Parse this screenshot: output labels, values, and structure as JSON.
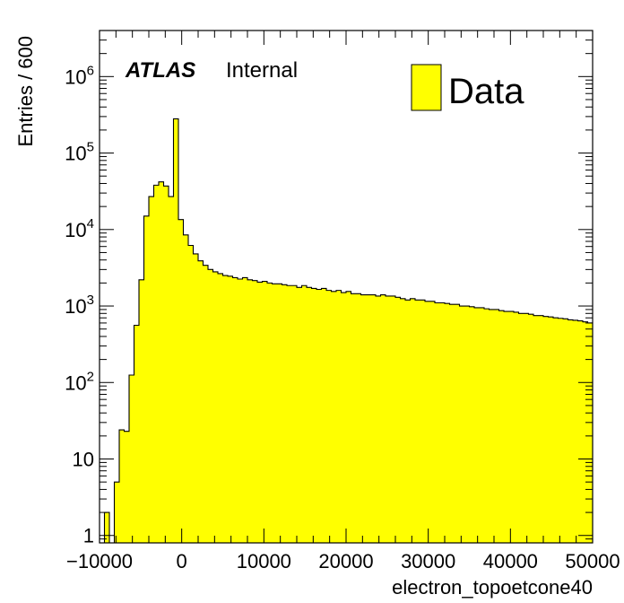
{
  "chart_data": {
    "type": "bar",
    "subtype": "histogram",
    "xlabel": "electron_topoetcone40",
    "ylabel": "Entries / 600",
    "x_range": [
      -10000,
      50000
    ],
    "bin_width": 600,
    "y_scale": "log",
    "ylim": [
      0.8,
      4000000
    ],
    "x_ticks": [
      -10000,
      0,
      10000,
      20000,
      30000,
      40000,
      50000
    ],
    "x_tick_labels": [
      "−10000",
      "0",
      "10000",
      "20000",
      "30000",
      "40000",
      "50000"
    ],
    "y_tick_labels": [
      {
        "value": 1,
        "base": "1",
        "exp": ""
      },
      {
        "value": 10,
        "base": "10",
        "exp": ""
      },
      {
        "value": 100,
        "base": "10",
        "exp": "2"
      },
      {
        "value": 1000,
        "base": "10",
        "exp": "3"
      },
      {
        "value": 10000,
        "base": "10",
        "exp": "4"
      },
      {
        "value": 100000,
        "base": "10",
        "exp": "5"
      },
      {
        "value": 1000000,
        "base": "10",
        "exp": "6"
      }
    ],
    "annotation": {
      "atlas": "ATLAS",
      "internal": "Internal"
    },
    "legend": {
      "label": "Data",
      "position": "top-right",
      "fill": "#ffff00",
      "edge": "#000000"
    },
    "series": [
      {
        "name": "Data",
        "fill": "#ffff00",
        "edge": "#000000",
        "bin_start": -10000,
        "values": [
          0,
          2,
          0,
          5,
          24,
          23,
          125,
          560,
          2200,
          15000,
          27000,
          38000,
          42000,
          37000,
          27000,
          280000,
          13500,
          8500,
          6200,
          4800,
          3900,
          3400,
          3000,
          2800,
          2650,
          2500,
          2450,
          2350,
          2250,
          2350,
          2200,
          2150,
          2050,
          2100,
          2000,
          1950,
          1950,
          1900,
          1850,
          1850,
          1750,
          1850,
          1750,
          1700,
          1650,
          1700,
          1600,
          1550,
          1600,
          1500,
          1550,
          1450,
          1450,
          1400,
          1400,
          1400,
          1350,
          1400,
          1350,
          1350,
          1300,
          1250,
          1200,
          1250,
          1200,
          1200,
          1150,
          1150,
          1100,
          1100,
          1080,
          1050,
          1050,
          1000,
          1000,
          980,
          950,
          950,
          920,
          900,
          900,
          870,
          850,
          850,
          830,
          800,
          800,
          780,
          750,
          750,
          730,
          720,
          700,
          690,
          680,
          660,
          650,
          640,
          620,
          600
        ]
      }
    ]
  }
}
